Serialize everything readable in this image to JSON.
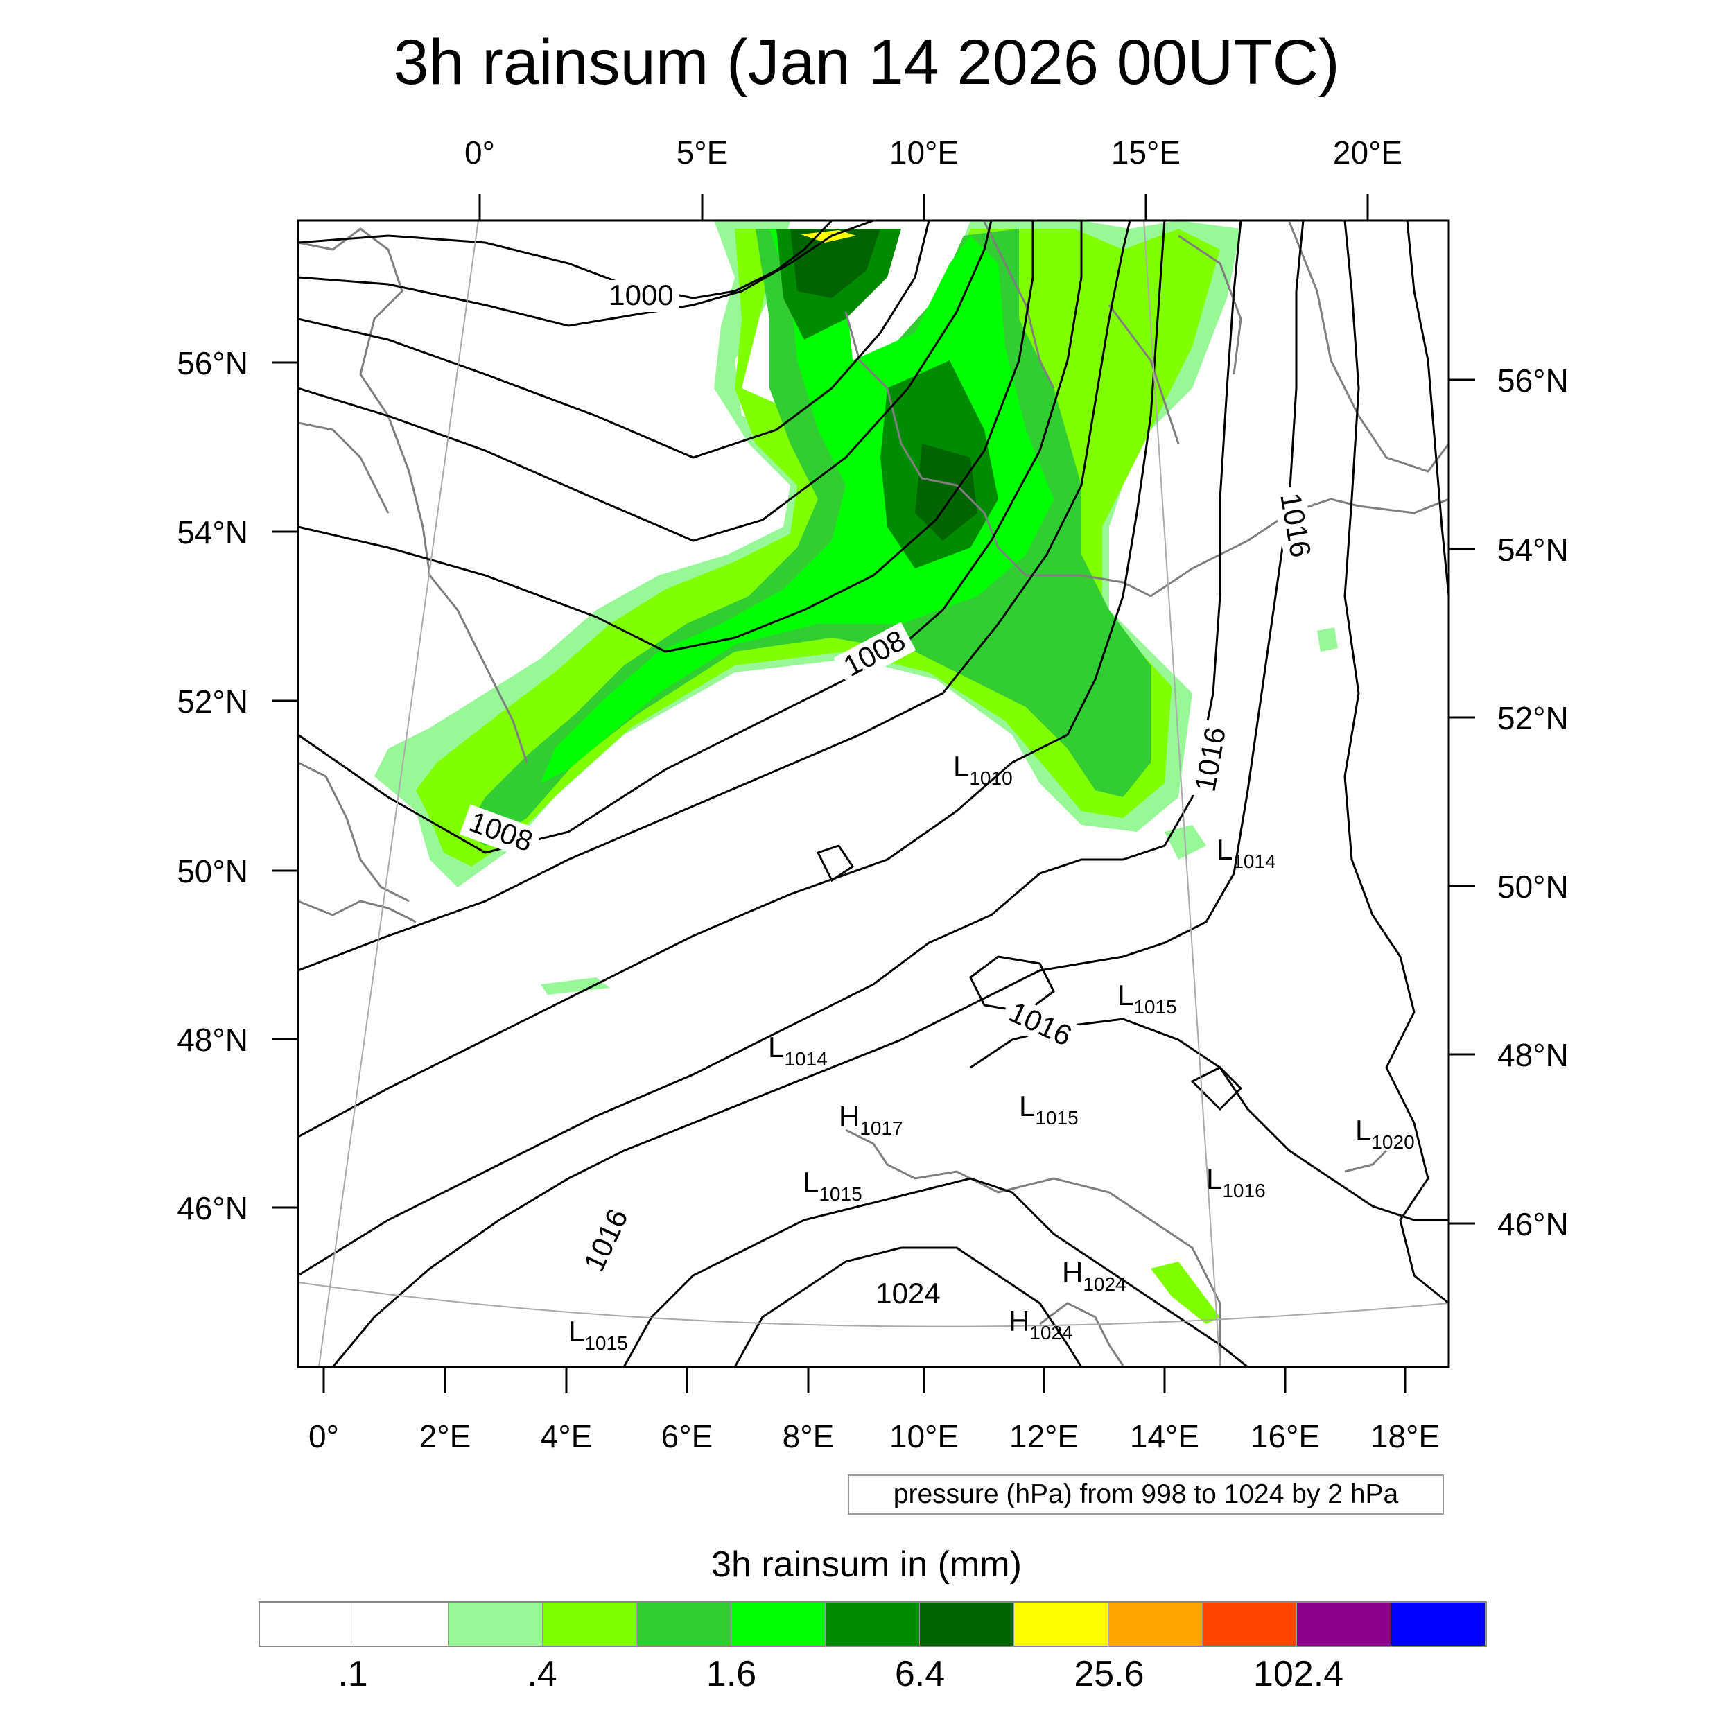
{
  "title": "3h rainsum (Jan 14 2026 00UTC)",
  "top_lon_labels": [
    "0°",
    "5°E",
    "10°E",
    "15°E",
    "20°E"
  ],
  "bottom_lon_labels": [
    "0°",
    "2°E",
    "4°E",
    "6°E",
    "8°E",
    "10°E",
    "12°E",
    "14°E",
    "16°E",
    "18°E"
  ],
  "left_lat_labels": [
    "56°N",
    "54°N",
    "52°N",
    "50°N",
    "48°N",
    "46°N"
  ],
  "right_lat_labels": [
    "56°N",
    "54°N",
    "52°N",
    "50°N",
    "48°N",
    "46°N"
  ],
  "isobar_labels": [
    "1000",
    "1008",
    "1008",
    "1016",
    "1016",
    "1016",
    "1016",
    "1024"
  ],
  "pressure_centers": [
    {
      "type": "L",
      "value": "1010"
    },
    {
      "type": "L",
      "value": "1014"
    },
    {
      "type": "L",
      "value": "1015"
    },
    {
      "type": "L",
      "value": "1014"
    },
    {
      "type": "L",
      "value": "1015"
    },
    {
      "type": "H",
      "value": "1017"
    },
    {
      "type": "L",
      "value": "1015"
    },
    {
      "type": "L",
      "value": "1016"
    },
    {
      "type": "L",
      "value": "1020"
    },
    {
      "type": "H",
      "value": "1024"
    },
    {
      "type": "H",
      "value": "1024"
    },
    {
      "type": "L",
      "value": "1015"
    }
  ],
  "pressure_note": "pressure (hPa) from 998 to 1024 by 2 hPa",
  "colorbar": {
    "title": "3h rainsum in (mm)",
    "colors": [
      "#ffffff",
      "#ffffff",
      "#98f898",
      "#80ff00",
      "#32cd32",
      "#00ff00",
      "#008b00",
      "#006400",
      "#ffff00",
      "#ffa500",
      "#ff4500",
      "#8b008b",
      "#0000ff"
    ],
    "tick_labels": [
      ".1",
      ".4",
      "1.6",
      "6.4",
      "25.6",
      "102.4"
    ]
  },
  "colors": {
    "coast": "#7f7f7f",
    "isobar": "#000000",
    "graticule": "#aaaaaa"
  }
}
